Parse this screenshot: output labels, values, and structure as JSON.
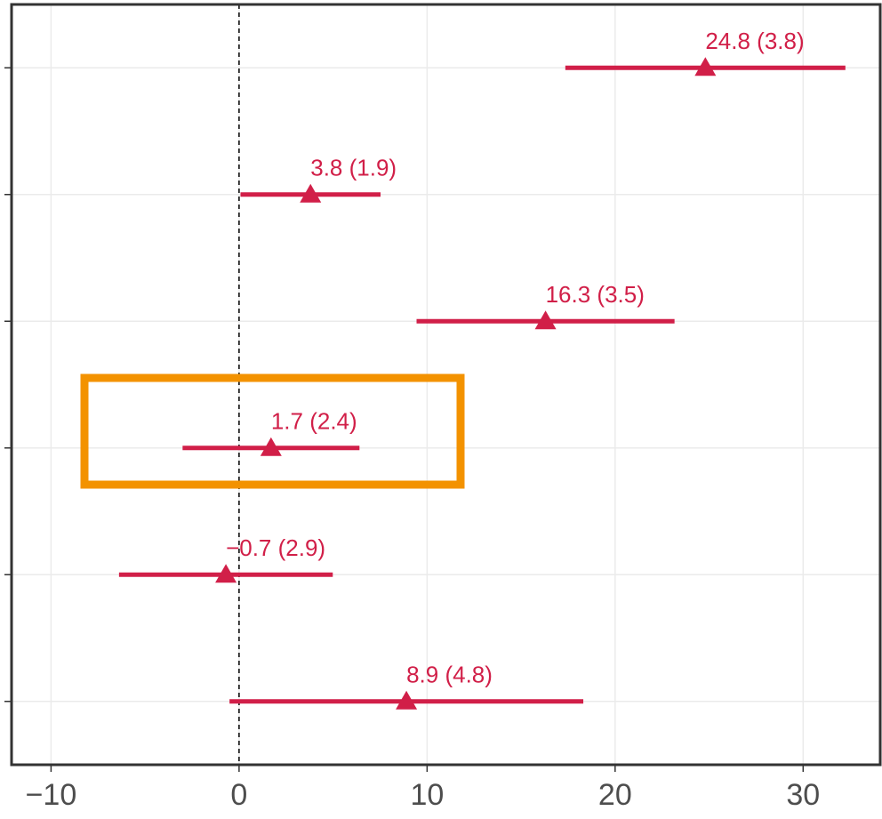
{
  "chart_data": {
    "type": "forest",
    "categories": [
      null,
      null,
      null,
      null,
      null,
      null
    ],
    "values": [
      24.8,
      3.8,
      16.3,
      1.7,
      -0.7,
      8.9
    ],
    "errors": [
      3.8,
      1.9,
      3.5,
      2.4,
      2.9,
      4.8
    ],
    "value_labels": [
      "24.8 (3.8)",
      "3.8 (1.9)",
      "16.3 (3.5)",
      "1.7 (2.4)",
      "−0.7 (2.9)",
      "8.9 (4.8)"
    ],
    "color": "#d11f48",
    "xlim": [
      -12.1,
      34.1
    ],
    "xticks": [
      {
        "value": -10,
        "label": "−10"
      },
      0,
      10,
      20,
      30
    ],
    "vline": 0,
    "grid": true
  }
}
